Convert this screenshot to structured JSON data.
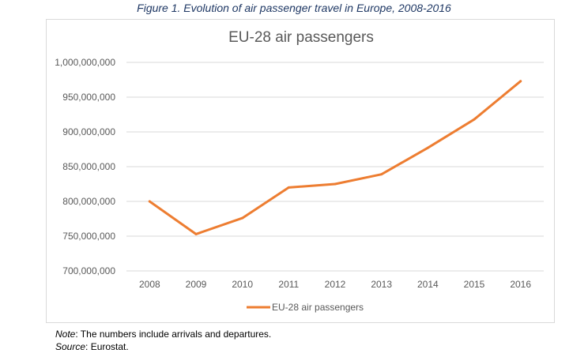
{
  "figure_caption": "Figure 1. Evolution of air passenger travel in Europe, 2008-2016",
  "chart_data": {
    "type": "line",
    "title": "EU-28 air passengers",
    "xlabel": "",
    "ylabel": "",
    "categories": [
      "2008",
      "2009",
      "2010",
      "2011",
      "2012",
      "2013",
      "2014",
      "2015",
      "2016"
    ],
    "series": [
      {
        "name": "EU-28 air passengers",
        "color": "#ed7d31",
        "values": [
          800000000,
          753000000,
          776000000,
          820000000,
          825000000,
          839000000,
          877000000,
          918000000,
          973000000
        ]
      }
    ],
    "ylim": [
      700000000,
      1000000000
    ],
    "yticks": [
      "700,000,000",
      "750,000,000",
      "800,000,000",
      "850,000,000",
      "900,000,000",
      "950,000,000",
      "1,000,000,000"
    ],
    "grid": true,
    "legend_position": "bottom"
  },
  "notes": {
    "note_label": "Note",
    "note_text": ": The numbers include arrivals and departures.",
    "source_label": "Source",
    "source_text": ": Eurostat."
  }
}
